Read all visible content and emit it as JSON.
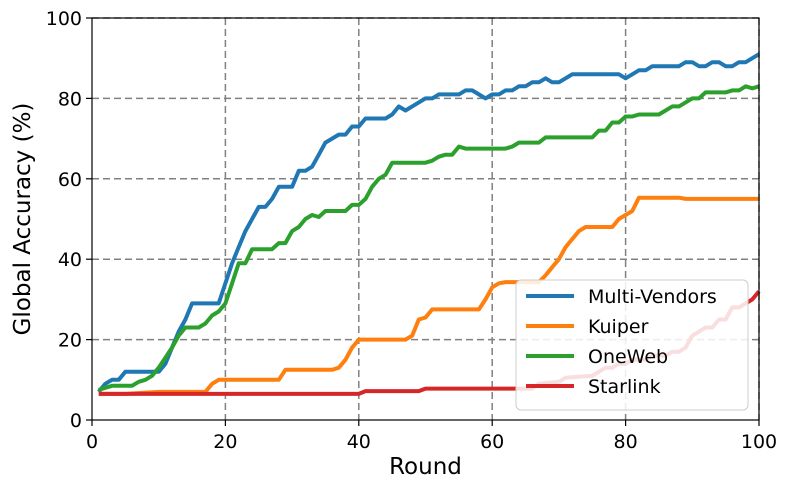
{
  "chart_data": {
    "type": "line",
    "xlabel": "Round",
    "ylabel": "Global Accuracy (%)",
    "xlim": [
      0,
      100
    ],
    "ylim": [
      0,
      100
    ],
    "xticks": [
      0,
      20,
      40,
      60,
      80,
      100
    ],
    "yticks": [
      0,
      20,
      40,
      60,
      80,
      100
    ],
    "grid": true,
    "legend_position": "lower-right",
    "series": [
      {
        "name": "Multi-Vendors",
        "color": "#1f77b4",
        "points": [
          [
            1,
            7
          ],
          [
            2,
            9
          ],
          [
            3,
            10
          ],
          [
            4,
            10
          ],
          [
            5,
            12
          ],
          [
            6,
            12
          ],
          [
            7,
            12
          ],
          [
            8,
            12
          ],
          [
            9,
            12
          ],
          [
            10,
            12
          ],
          [
            11,
            14
          ],
          [
            12,
            18
          ],
          [
            13,
            22
          ],
          [
            14,
            25
          ],
          [
            15,
            29
          ],
          [
            16,
            29
          ],
          [
            17,
            29
          ],
          [
            18,
            29
          ],
          [
            19,
            29
          ],
          [
            20,
            34
          ],
          [
            21,
            39
          ],
          [
            22,
            43
          ],
          [
            23,
            47
          ],
          [
            24,
            50
          ],
          [
            25,
            53
          ],
          [
            26,
            53
          ],
          [
            27,
            55
          ],
          [
            28,
            58
          ],
          [
            29,
            58
          ],
          [
            30,
            58
          ],
          [
            31,
            62
          ],
          [
            32,
            62
          ],
          [
            33,
            63
          ],
          [
            34,
            66
          ],
          [
            35,
            69
          ],
          [
            36,
            70
          ],
          [
            37,
            71
          ],
          [
            38,
            71
          ],
          [
            39,
            73
          ],
          [
            40,
            73
          ],
          [
            41,
            75
          ],
          [
            42,
            75
          ],
          [
            43,
            75
          ],
          [
            44,
            75
          ],
          [
            45,
            76
          ],
          [
            46,
            78
          ],
          [
            47,
            77
          ],
          [
            48,
            78
          ],
          [
            49,
            79
          ],
          [
            50,
            80
          ],
          [
            51,
            80
          ],
          [
            52,
            81
          ],
          [
            53,
            81
          ],
          [
            54,
            81
          ],
          [
            55,
            81
          ],
          [
            56,
            82
          ],
          [
            57,
            82
          ],
          [
            58,
            81
          ],
          [
            59,
            80
          ],
          [
            60,
            81
          ],
          [
            61,
            81
          ],
          [
            62,
            82
          ],
          [
            63,
            82
          ],
          [
            64,
            83
          ],
          [
            65,
            83
          ],
          [
            66,
            84
          ],
          [
            67,
            84
          ],
          [
            68,
            85
          ],
          [
            69,
            84
          ],
          [
            70,
            84
          ],
          [
            71,
            85
          ],
          [
            72,
            86
          ],
          [
            73,
            86
          ],
          [
            74,
            86
          ],
          [
            75,
            86
          ],
          [
            76,
            86
          ],
          [
            77,
            86
          ],
          [
            78,
            86
          ],
          [
            79,
            86
          ],
          [
            80,
            85
          ],
          [
            81,
            86
          ],
          [
            82,
            87
          ],
          [
            83,
            87
          ],
          [
            84,
            88
          ],
          [
            85,
            88
          ],
          [
            86,
            88
          ],
          [
            87,
            88
          ],
          [
            88,
            88
          ],
          [
            89,
            89
          ],
          [
            90,
            89
          ],
          [
            91,
            88
          ],
          [
            92,
            88
          ],
          [
            93,
            89
          ],
          [
            94,
            89
          ],
          [
            95,
            88
          ],
          [
            96,
            88
          ],
          [
            97,
            89
          ],
          [
            98,
            89
          ],
          [
            99,
            90
          ],
          [
            100,
            91
          ]
        ]
      },
      {
        "name": "Kuiper",
        "color": "#ff7f0e",
        "points": [
          [
            1,
            6.5
          ],
          [
            5,
            6.5
          ],
          [
            10,
            7
          ],
          [
            17,
            7
          ],
          [
            18,
            9
          ],
          [
            19,
            10
          ],
          [
            27,
            10
          ],
          [
            28,
            10
          ],
          [
            29,
            12.5
          ],
          [
            36,
            12.5
          ],
          [
            37,
            13
          ],
          [
            38,
            15
          ],
          [
            39,
            18
          ],
          [
            40,
            20
          ],
          [
            47,
            20
          ],
          [
            48,
            21
          ],
          [
            49,
            25
          ],
          [
            50,
            25.5
          ],
          [
            51,
            27.5
          ],
          [
            58,
            27.5
          ],
          [
            59,
            30
          ],
          [
            60,
            33
          ],
          [
            61,
            34
          ],
          [
            62,
            34.3
          ],
          [
            67,
            34.3
          ],
          [
            68,
            36
          ],
          [
            69,
            38
          ],
          [
            70,
            40
          ],
          [
            71,
            43
          ],
          [
            72,
            45
          ],
          [
            73,
            47
          ],
          [
            74,
            48
          ],
          [
            78,
            48
          ],
          [
            79,
            50
          ],
          [
            80,
            51
          ],
          [
            81,
            52
          ],
          [
            82,
            55.3
          ],
          [
            88,
            55.3
          ],
          [
            89,
            55
          ],
          [
            100,
            55
          ]
        ]
      },
      {
        "name": "OneWeb",
        "color": "#2ca02c",
        "points": [
          [
            1,
            7.5
          ],
          [
            2,
            8
          ],
          [
            3,
            8.5
          ],
          [
            6,
            8.5
          ],
          [
            7,
            9.5
          ],
          [
            8,
            10
          ],
          [
            9,
            11
          ],
          [
            10,
            13
          ],
          [
            11,
            15.5
          ],
          [
            12,
            18
          ],
          [
            13,
            21
          ],
          [
            14,
            23
          ],
          [
            15,
            23
          ],
          [
            16,
            23
          ],
          [
            17,
            24
          ],
          [
            18,
            26
          ],
          [
            19,
            27
          ],
          [
            20,
            29
          ],
          [
            21,
            34
          ],
          [
            22,
            39
          ],
          [
            23,
            39
          ],
          [
            24,
            42.5
          ],
          [
            27,
            42.5
          ],
          [
            28,
            44
          ],
          [
            29,
            44
          ],
          [
            30,
            47
          ],
          [
            31,
            48
          ],
          [
            32,
            50
          ],
          [
            33,
            51
          ],
          [
            34,
            50.5
          ],
          [
            35,
            52
          ],
          [
            38,
            52
          ],
          [
            39,
            53.5
          ],
          [
            40,
            53.5
          ],
          [
            41,
            55
          ],
          [
            42,
            58
          ],
          [
            43,
            60
          ],
          [
            44,
            61
          ],
          [
            45,
            64
          ],
          [
            50,
            64
          ],
          [
            51,
            64.5
          ],
          [
            52,
            65.5
          ],
          [
            53,
            66
          ],
          [
            54,
            66
          ],
          [
            55,
            68
          ],
          [
            56,
            67.5
          ],
          [
            62,
            67.5
          ],
          [
            63,
            68
          ],
          [
            64,
            69
          ],
          [
            67,
            69
          ],
          [
            68,
            70.3
          ],
          [
            75,
            70.3
          ],
          [
            76,
            72
          ],
          [
            77,
            72
          ],
          [
            78,
            74
          ],
          [
            79,
            74
          ],
          [
            80,
            75.5
          ],
          [
            81,
            75.5
          ],
          [
            82,
            76
          ],
          [
            85,
            76
          ],
          [
            86,
            77
          ],
          [
            87,
            78
          ],
          [
            88,
            78
          ],
          [
            89,
            79
          ],
          [
            90,
            80
          ],
          [
            91,
            80
          ],
          [
            92,
            81.5
          ],
          [
            95,
            81.5
          ],
          [
            96,
            82
          ],
          [
            97,
            82
          ],
          [
            98,
            83
          ],
          [
            99,
            82.5
          ],
          [
            100,
            83
          ]
        ]
      },
      {
        "name": "Starlink",
        "color": "#d62728",
        "points": [
          [
            1,
            6.5
          ],
          [
            40,
            6.5
          ],
          [
            41,
            7.2
          ],
          [
            49,
            7.2
          ],
          [
            50,
            7.8
          ],
          [
            66,
            7.8
          ],
          [
            67,
            9
          ],
          [
            70,
            9.5
          ],
          [
            71,
            10.5
          ],
          [
            75,
            11
          ],
          [
            76,
            12
          ],
          [
            77,
            13
          ],
          [
            78,
            13
          ],
          [
            79,
            14
          ],
          [
            80,
            14
          ],
          [
            81,
            15
          ],
          [
            82,
            15
          ],
          [
            83,
            15
          ],
          [
            84,
            16
          ],
          [
            85,
            16
          ],
          [
            86,
            16
          ],
          [
            87,
            17
          ],
          [
            88,
            17
          ],
          [
            89,
            18
          ],
          [
            90,
            21
          ],
          [
            91,
            22
          ],
          [
            92,
            23
          ],
          [
            93,
            23
          ],
          [
            94,
            25
          ],
          [
            95,
            25
          ],
          [
            96,
            28
          ],
          [
            97,
            28
          ],
          [
            98,
            29
          ],
          [
            99,
            30
          ],
          [
            100,
            32
          ]
        ]
      }
    ]
  }
}
